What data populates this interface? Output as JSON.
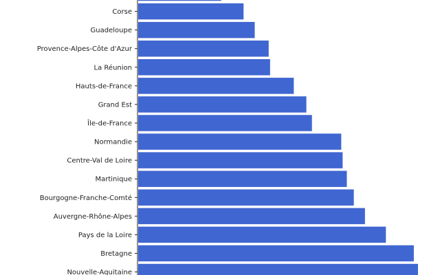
{
  "chart_data": {
    "type": "bar",
    "orientation": "horizontal",
    "categories": [
      "",
      "Corse",
      "Guadeloupe",
      "Provence-Alpes-Côte d'Azur",
      "La Réunion",
      "Hauts-de-France",
      "Grand Est",
      "Île-de-France",
      "Normandie",
      "Centre-Val de Loire",
      "Martinique",
      "Bourgogne-Franche-Comté",
      "Auvergne-Rhône-Alpes",
      "Pays de la Loire",
      "Bretagne",
      "Nouvelle-Aquitaine"
    ],
    "values": [
      30,
      38,
      42,
      47,
      47.5,
      56,
      60.5,
      62.5,
      73,
      73.5,
      75,
      77.5,
      81.5,
      89,
      99,
      100.5
    ],
    "xlim": [
      0,
      100.5
    ],
    "title": "",
    "xlabel": "",
    "ylabel": "",
    "bar_color": "#4066d1",
    "grid": false,
    "legend": "none"
  }
}
